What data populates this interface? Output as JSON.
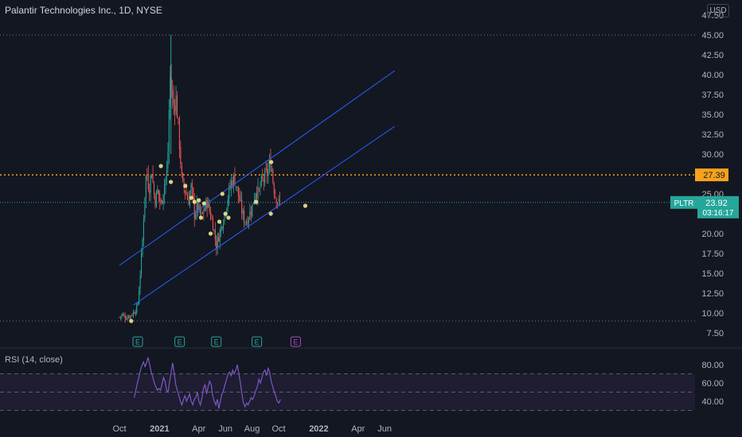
{
  "header": {
    "title": "Palantir Technologies Inc., 1D, NYSE",
    "currency": "USD"
  },
  "colors": {
    "background": "#131722",
    "grid": "#2a2e39",
    "up": "#26a69a",
    "down": "#ef5350",
    "channel": "#2962ff",
    "level": "#f7a21b",
    "rsi": "#7e57c2",
    "last": "#26a69a"
  },
  "chart_data": [
    {
      "type": "candlestick",
      "title": "Palantir Technologies Inc., 1D, NYSE",
      "ylim": [
        5.5,
        47.5
      ],
      "y_ticks": [
        "47.50",
        "45.00",
        "42.50",
        "40.00",
        "37.50",
        "35.00",
        "32.50",
        "30.00",
        "27.50",
        "25.00",
        "22.50",
        "20.00",
        "17.50",
        "15.00",
        "12.50",
        "10.00",
        "7.50"
      ],
      "x_ticks": [
        "Oct",
        "2021",
        "Apr",
        "Jun",
        "Aug",
        "Oct",
        "2022",
        "Apr",
        "Jun"
      ],
      "close_path": [
        [
          "2020-10-01",
          9.5
        ],
        [
          "2020-10-08",
          9.8
        ],
        [
          "2020-10-15",
          9.4
        ],
        [
          "2020-10-22",
          9.6
        ],
        [
          "2020-10-29",
          9.8
        ],
        [
          "2020-11-05",
          10.2
        ],
        [
          "2020-11-12",
          11.0
        ],
        [
          "2020-11-19",
          16.0
        ],
        [
          "2020-11-24",
          20.0
        ],
        [
          "2020-11-27",
          24.0
        ],
        [
          "2020-12-02",
          28.0
        ],
        [
          "2020-12-08",
          25.5
        ],
        [
          "2020-12-14",
          28.0
        ],
        [
          "2020-12-21",
          24.0
        ],
        [
          "2020-12-28",
          25.5
        ],
        [
          "2021-01-04",
          23.5
        ],
        [
          "2021-01-11",
          26.0
        ],
        [
          "2021-01-19",
          28.0
        ],
        [
          "2021-01-25",
          40.0
        ],
        [
          "2021-02-01",
          36.0
        ],
        [
          "2021-02-08",
          37.0
        ],
        [
          "2021-02-16",
          31.0
        ],
        [
          "2021-02-22",
          26.0
        ],
        [
          "2021-03-01",
          25.5
        ],
        [
          "2021-03-08",
          24.0
        ],
        [
          "2021-03-15",
          26.0
        ],
        [
          "2021-03-22",
          22.5
        ],
        [
          "2021-03-29",
          23.5
        ],
        [
          "2021-04-06",
          22.0
        ],
        [
          "2021-04-13",
          23.0
        ],
        [
          "2021-04-20",
          24.0
        ],
        [
          "2021-04-27",
          22.5
        ],
        [
          "2021-05-04",
          21.0
        ],
        [
          "2021-05-11",
          18.5
        ],
        [
          "2021-05-18",
          20.0
        ],
        [
          "2021-05-25",
          21.5
        ],
        [
          "2021-06-01",
          23.0
        ],
        [
          "2021-06-08",
          25.0
        ],
        [
          "2021-06-15",
          26.5
        ],
        [
          "2021-06-22",
          27.0
        ],
        [
          "2021-06-28",
          25.5
        ],
        [
          "2021-07-06",
          23.5
        ],
        [
          "2021-07-12",
          22.0
        ],
        [
          "2021-07-19",
          21.5
        ],
        [
          "2021-07-26",
          22.5
        ],
        [
          "2021-08-02",
          23.5
        ],
        [
          "2021-08-09",
          25.5
        ],
        [
          "2021-08-16",
          25.0
        ],
        [
          "2021-08-23",
          26.5
        ],
        [
          "2021-08-30",
          27.0
        ],
        [
          "2021-09-07",
          28.0
        ],
        [
          "2021-09-14",
          29.0
        ],
        [
          "2021-09-17",
          27.0
        ],
        [
          "2021-09-22",
          25.0
        ],
        [
          "2021-09-27",
          24.5
        ],
        [
          "2021-09-30",
          23.8
        ],
        [
          "2021-10-05",
          23.9
        ]
      ],
      "markers_y": [
        9.0,
        26.0,
        24.5,
        24.0,
        24.2,
        22.0,
        23.8,
        28.5,
        26.5,
        25.0,
        20.0,
        21.5,
        22.5,
        22.0,
        24.0,
        29.0,
        22.5,
        23.5
      ],
      "earnings_events": [
        "2020-11-12",
        "2021-02-16",
        "2021-05-11",
        "2021-08-12",
        "2021-11-09"
      ],
      "earnings_label": "E",
      "trendlines": [
        {
          "start": [
            "2020-10-01",
            16.0
          ],
          "end": [
            "2022-06-24",
            40.5
          ]
        },
        {
          "start": [
            "2020-11-02",
            11.0
          ],
          "end": [
            "2022-06-24",
            33.5
          ]
        }
      ],
      "horizontal_level": 27.39,
      "dotted_levels": [
        45.0,
        9.0
      ],
      "last_price": 23.92,
      "last_timer": "03:16:17",
      "symbol": "PLTR",
      "level_label": "27.39",
      "price_label": "23.92"
    },
    {
      "type": "line",
      "title": "RSI (14, close)",
      "ylim": [
        30,
        88
      ],
      "y_ticks": [
        "80.00",
        "60.00",
        "40.00"
      ],
      "band_levels": [
        70,
        50,
        30
      ],
      "series": [
        {
          "values": [
            44,
            52,
            60,
            66,
            74,
            79,
            83,
            78,
            82,
            88,
            80,
            72,
            67,
            60,
            56,
            52,
            54,
            52,
            58,
            66,
            62,
            52,
            50,
            62,
            72,
            82,
            70,
            58,
            52,
            46,
            40,
            36,
            42,
            46,
            40,
            44,
            48,
            40,
            36,
            42,
            44,
            50,
            40,
            36,
            44,
            54,
            58,
            48,
            56,
            62,
            58,
            46,
            40,
            36,
            42,
            32,
            40,
            48,
            52,
            58,
            64,
            70,
            72,
            68,
            74,
            70,
            74,
            80,
            70,
            60,
            48,
            38,
            34,
            38,
            36,
            40,
            44,
            42,
            46,
            52,
            56,
            64,
            60,
            66,
            72,
            74,
            68,
            76,
            72,
            62,
            56,
            50,
            46,
            40,
            38,
            42
          ]
        }
      ]
    }
  ]
}
